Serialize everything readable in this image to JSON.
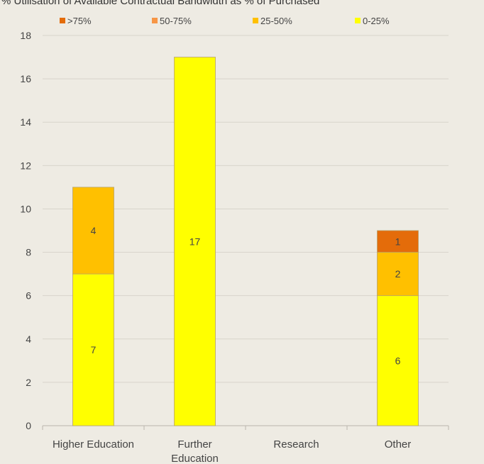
{
  "title": "% Utilisation of Available Contractual Bandwidth as % of Purchased",
  "chart_data": {
    "type": "bar",
    "stacked": true,
    "title": "% Utilisation of Available Contractual Bandwidth as % of Purchased",
    "xlabel": "",
    "ylabel": "",
    "categories": [
      "Higher Education",
      "Further Education",
      "Research",
      "Other"
    ],
    "series": [
      {
        "name": "0-25%",
        "color": "#ffff00",
        "values": [
          7,
          17,
          0,
          6
        ]
      },
      {
        "name": "25-50%",
        "color": "#ffc000",
        "values": [
          4,
          0,
          0,
          2
        ]
      },
      {
        "name": "50-75%",
        "color": "#f79646",
        "values": [
          0,
          0,
          0,
          0
        ]
      },
      {
        "name": ">75%",
        "color": "#e46c0a",
        "values": [
          0,
          0,
          0,
          1
        ]
      }
    ],
    "legend_order": [
      ">75%",
      "50-75%",
      "25-50%",
      "0-25%"
    ],
    "ylim": [
      0,
      18
    ],
    "yticks": [
      0,
      2,
      4,
      6,
      8,
      10,
      12,
      14,
      16,
      18
    ],
    "grid": true,
    "legend_position": "top"
  }
}
